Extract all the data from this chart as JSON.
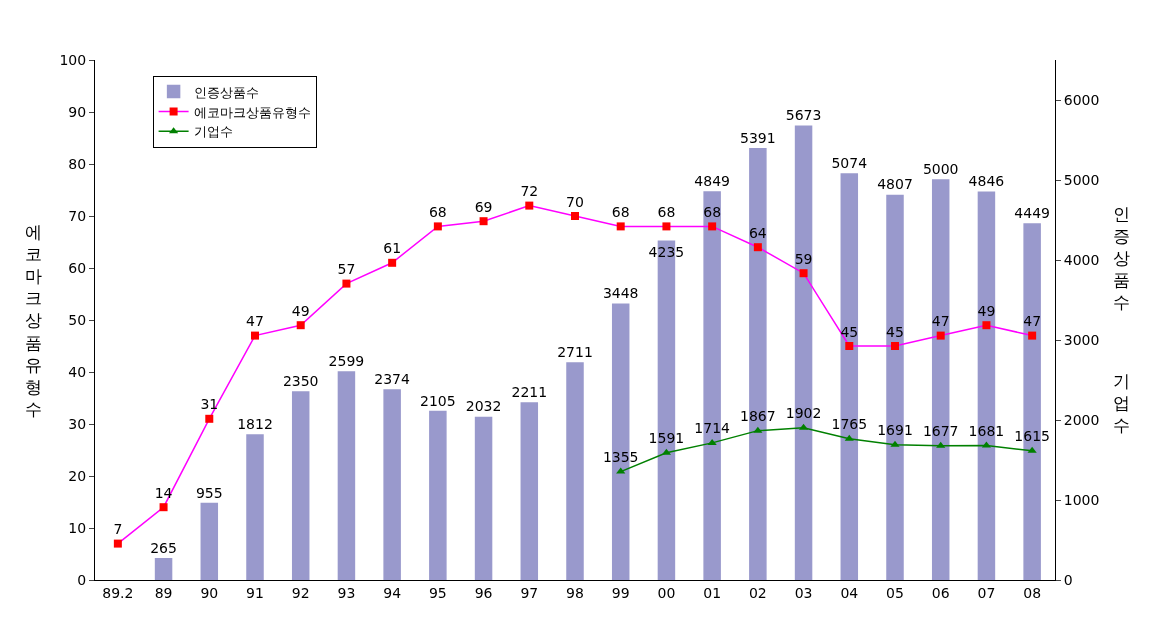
{
  "chart_data": {
    "type": "bar",
    "ylabel": "에코마크상품유형수",
    "y2label": "인증상품수",
    "annotations": [
      "기업수"
    ],
    "categories": [
      "89.2",
      "89",
      "90",
      "91",
      "92",
      "93",
      "94",
      "95",
      "96",
      "97",
      "98",
      "99",
      "00",
      "01",
      "02",
      "03",
      "04",
      "05",
      "06",
      "07",
      "08"
    ],
    "series": [
      {
        "name": "인증상품수",
        "axis": "y2",
        "color": "#9999cc",
        "values": [
          null,
          265,
          955,
          1812,
          2350,
          2599,
          2374,
          2105,
          2032,
          2211,
          2711,
          3448,
          4235,
          4849,
          5391,
          5673,
          5074,
          4807,
          5000,
          4846,
          4449
        ]
      },
      {
        "name": "에코마크상품유형수",
        "type": "line",
        "color": "#ff00ff",
        "colors": [
          "#ff0000",
          "#ff0000",
          "#ff0000",
          "#ff0000",
          "#ff0000",
          "#ff0000",
          "#ff0000",
          "#ff0000",
          "#ff0000",
          "#ff0000",
          "#ff0000",
          "#ff0000",
          "#ff0000",
          "#ff0000",
          "#ff0000",
          "#ff0000",
          "#ff0000",
          "#ff0000",
          "#ff0000",
          "#ff0000",
          "#ff0000"
        ],
        "marker": "square",
        "values": [
          7,
          14,
          31,
          47,
          49,
          57,
          61,
          68,
          69,
          72,
          70,
          68,
          68,
          68,
          64,
          59,
          45,
          45,
          47,
          49,
          47
        ]
      },
      {
        "name": "기업수",
        "type": "line",
        "axis": "y2",
        "color": "#008000",
        "marker": "triangle",
        "values": [
          null,
          null,
          null,
          null,
          null,
          null,
          null,
          null,
          null,
          null,
          null,
          1355,
          1591,
          1714,
          1867,
          1902,
          1765,
          1691,
          1677,
          1681,
          1615
        ]
      }
    ],
    "ylim": [
      0,
      100
    ],
    "yticks": [
      0,
      10,
      20,
      30,
      40,
      50,
      60,
      70,
      80,
      90,
      100
    ],
    "y2lim": [
      0,
      6500
    ],
    "y2ticks": [
      0,
      1000,
      2000,
      3000,
      4000,
      5000,
      6000
    ],
    "data_labels": true,
    "legend": "top left"
  }
}
